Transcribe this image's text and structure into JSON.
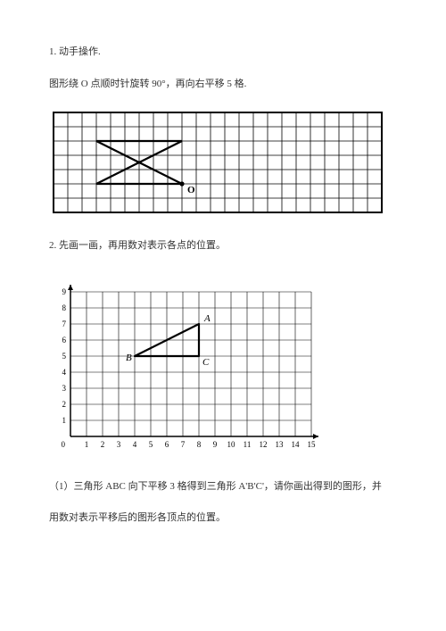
{
  "problem1": {
    "number_line": "1. 动手操作.",
    "instruction": "图形绕 O 点顺时针旋转 90°，再向右平移 5 格.",
    "grid": {
      "cols": 23,
      "rows": 7,
      "cell": 16,
      "stroke": "#000000",
      "stroke_width": 0.8,
      "border_width": 2,
      "figure_stroke_width": 2.2,
      "point_O": {
        "col": 9,
        "row": 5,
        "label": "O"
      },
      "shape_points_grid": [
        [
          3,
          2
        ],
        [
          9,
          2
        ],
        [
          3,
          5
        ],
        [
          9,
          5
        ]
      ],
      "shape_edges": [
        [
          0,
          1
        ],
        [
          2,
          3
        ],
        [
          0,
          3
        ],
        [
          1,
          2
        ]
      ]
    }
  },
  "problem2": {
    "number_line": "2. 先画一画，再用数对表示各点的位置。",
    "chart": {
      "x_ticks": [
        1,
        2,
        3,
        4,
        5,
        6,
        7,
        8,
        9,
        10,
        11,
        12,
        13,
        14,
        15
      ],
      "y_ticks": [
        1,
        2,
        3,
        4,
        5,
        6,
        7,
        8,
        9
      ],
      "origin_label": "0",
      "xlim": [
        0,
        15.5
      ],
      "ylim": [
        0,
        9.3
      ],
      "cell": 18,
      "grid_color": "#000000",
      "grid_width": 0.6,
      "axis_width": 1.5,
      "axis_color": "#000000",
      "tick_fontsize": 9,
      "label_fontsize": 11,
      "triangle_stroke_width": 2.2,
      "points": {
        "A": {
          "x": 8,
          "y": 7
        },
        "B": {
          "x": 4,
          "y": 5
        },
        "C": {
          "x": 8,
          "y": 5
        }
      }
    },
    "sub1": "（1）三角形 ABC 向下平移 3 格得到三角形 A'B'C'，请你画出得到的图形，并",
    "sub1_line2": "用数对表示平移后的图形各顶点的位置。"
  }
}
